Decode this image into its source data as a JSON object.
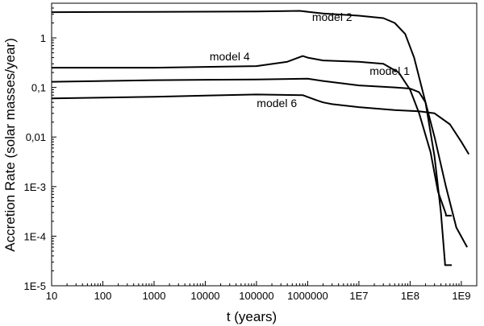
{
  "chart_data": {
    "type": "line",
    "title": "",
    "xlabel": "t (years)",
    "ylabel": "Accretion Rate (solar masses/year)",
    "x_scale": "log",
    "y_scale": "log",
    "xlim": [
      10,
      2000000000
    ],
    "ylim": [
      1e-05,
      5
    ],
    "grid": false,
    "legend": "none",
    "x_ticks": [
      {
        "value": 10,
        "label": "10"
      },
      {
        "value": 100,
        "label": "100"
      },
      {
        "value": 1000,
        "label": "1000"
      },
      {
        "value": 10000,
        "label": "10000"
      },
      {
        "value": 100000,
        "label": "100000"
      },
      {
        "value": 1000000,
        "label": "1000000"
      },
      {
        "value": 10000000,
        "label": "1E7"
      },
      {
        "value": 100000000,
        "label": "1E8"
      },
      {
        "value": 1000000000,
        "label": "1E9"
      }
    ],
    "y_ticks": [
      {
        "value": 1,
        "label": "1"
      },
      {
        "value": 0.1,
        "label": "0,1"
      },
      {
        "value": 0.01,
        "label": "0,01"
      },
      {
        "value": 0.001,
        "label": "1E-3"
      },
      {
        "value": 0.0001,
        "label": "1E-4"
      },
      {
        "value": 1e-05,
        "label": "1E-5"
      }
    ],
    "series": [
      {
        "name": "model 2",
        "x": [
          10,
          1000,
          100000,
          700000,
          2000000,
          10000000,
          30000000,
          50000000,
          80000000,
          120000000,
          200000000,
          300000000,
          400000000,
          480000000,
          480000000,
          650000000
        ],
        "y": [
          3.3,
          3.35,
          3.4,
          3.5,
          3.1,
          2.8,
          2.5,
          2.0,
          1.2,
          0.4,
          0.05,
          0.004,
          0.0003,
          2.8e-05,
          2.6e-05,
          2.6e-05
        ]
      },
      {
        "name": "model 4",
        "x": [
          10,
          1000,
          100000,
          400000,
          800000,
          1000000,
          2000000,
          10000000,
          30000000,
          60000000,
          100000000,
          150000000,
          250000000,
          350000000,
          500000000,
          500000000,
          650000000
        ],
        "y": [
          0.25,
          0.25,
          0.27,
          0.33,
          0.43,
          0.4,
          0.35,
          0.33,
          0.3,
          0.2,
          0.09,
          0.03,
          0.005,
          0.0008,
          0.00028,
          0.00026,
          0.00026
        ]
      },
      {
        "name": "model 1",
        "x": [
          10,
          1000,
          100000,
          1000000,
          2000000,
          5000000,
          10000000,
          50000000,
          100000000,
          150000000,
          200000000,
          300000000,
          500000000,
          800000000,
          1300000000
        ],
        "y": [
          0.13,
          0.14,
          0.145,
          0.15,
          0.135,
          0.12,
          0.11,
          0.1,
          0.095,
          0.08,
          0.05,
          0.01,
          0.001,
          0.00015,
          6e-05
        ]
      },
      {
        "name": "model 6",
        "x": [
          10,
          1000,
          100000,
          800000,
          1500000,
          2000000,
          3000000,
          10000000,
          50000000,
          150000000,
          300000000,
          600000000,
          1000000000,
          1400000000
        ],
        "y": [
          0.06,
          0.065,
          0.072,
          0.07,
          0.055,
          0.05,
          0.046,
          0.04,
          0.035,
          0.033,
          0.03,
          0.018,
          0.008,
          0.0045
        ]
      }
    ],
    "annotations": [
      {
        "text": "model 2",
        "series": "model 2",
        "x": 3000000,
        "y": 2.2
      },
      {
        "text": "model 4",
        "series": "model 4",
        "x": 30000,
        "y": 0.35
      },
      {
        "text": "model 1",
        "series": "model 1",
        "x": 40000000,
        "y": 0.18
      },
      {
        "text": "model 6",
        "series": "model 6",
        "x": 250000,
        "y": 0.04
      }
    ]
  }
}
